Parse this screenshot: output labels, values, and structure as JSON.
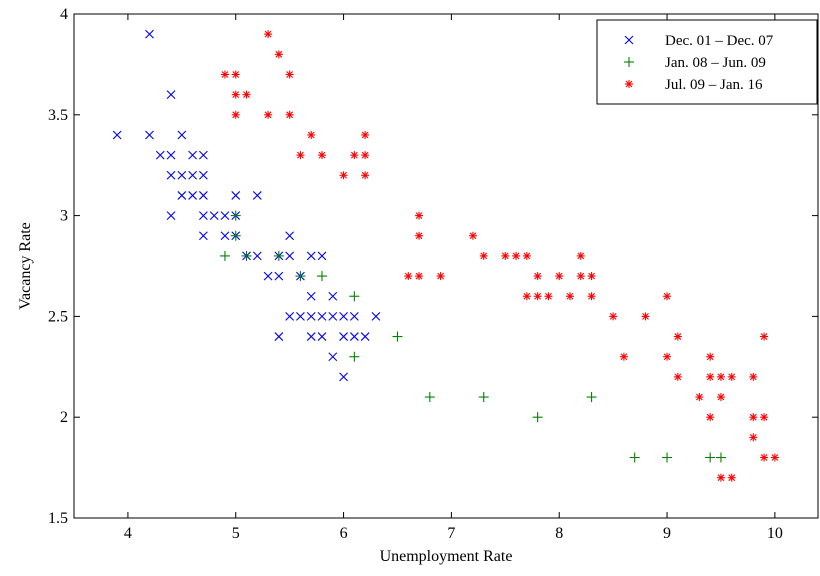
{
  "chart_data": {
    "type": "scatter",
    "title": "",
    "xlabel": "Unemployment Rate",
    "ylabel": "Vacancy Rate",
    "xlim": [
      3.5,
      10.4
    ],
    "ylim": [
      1.5,
      4.0
    ],
    "xticks": [
      4,
      5,
      6,
      7,
      8,
      9,
      10
    ],
    "yticks": [
      1.5,
      2,
      2.5,
      3,
      3.5,
      4
    ],
    "grid": false,
    "legend_position": "top-right",
    "series": [
      {
        "name": "Dec. 01 – Dec. 07",
        "marker": "x",
        "color": "#0000ff",
        "points": [
          [
            3.9,
            3.4
          ],
          [
            4.2,
            3.9
          ],
          [
            4.2,
            3.4
          ],
          [
            4.3,
            3.3
          ],
          [
            4.4,
            3.6
          ],
          [
            4.4,
            3.3
          ],
          [
            4.4,
            3.2
          ],
          [
            4.4,
            3.0
          ],
          [
            4.5,
            3.4
          ],
          [
            4.5,
            3.2
          ],
          [
            4.5,
            3.1
          ],
          [
            4.6,
            3.3
          ],
          [
            4.6,
            3.2
          ],
          [
            4.6,
            3.1
          ],
          [
            4.7,
            3.3
          ],
          [
            4.7,
            3.2
          ],
          [
            4.7,
            3.1
          ],
          [
            4.7,
            3.0
          ],
          [
            4.7,
            2.9
          ],
          [
            4.8,
            3.0
          ],
          [
            4.9,
            3.0
          ],
          [
            4.9,
            2.9
          ],
          [
            5.0,
            3.1
          ],
          [
            5.0,
            3.0
          ],
          [
            5.0,
            2.9
          ],
          [
            5.1,
            2.8
          ],
          [
            5.2,
            3.1
          ],
          [
            5.2,
            2.8
          ],
          [
            5.3,
            2.7
          ],
          [
            5.4,
            2.8
          ],
          [
            5.4,
            2.7
          ],
          [
            5.4,
            2.4
          ],
          [
            5.5,
            2.9
          ],
          [
            5.5,
            2.8
          ],
          [
            5.5,
            2.5
          ],
          [
            5.6,
            2.7
          ],
          [
            5.6,
            2.5
          ],
          [
            5.7,
            2.8
          ],
          [
            5.7,
            2.6
          ],
          [
            5.7,
            2.5
          ],
          [
            5.7,
            2.4
          ],
          [
            5.8,
            2.8
          ],
          [
            5.8,
            2.5
          ],
          [
            5.8,
            2.4
          ],
          [
            5.9,
            2.6
          ],
          [
            5.9,
            2.5
          ],
          [
            5.9,
            2.3
          ],
          [
            6.0,
            2.5
          ],
          [
            6.0,
            2.4
          ],
          [
            6.0,
            2.2
          ],
          [
            6.1,
            2.5
          ],
          [
            6.1,
            2.4
          ],
          [
            6.2,
            2.4
          ],
          [
            6.3,
            2.5
          ]
        ]
      },
      {
        "name": "Jan. 08 – Jun. 09",
        "marker": "+",
        "color": "#008000",
        "points": [
          [
            4.9,
            2.8
          ],
          [
            5.0,
            3.0
          ],
          [
            5.0,
            2.9
          ],
          [
            5.1,
            2.8
          ],
          [
            5.4,
            2.8
          ],
          [
            5.6,
            2.7
          ],
          [
            5.8,
            2.7
          ],
          [
            6.1,
            2.6
          ],
          [
            6.1,
            2.3
          ],
          [
            6.5,
            2.4
          ],
          [
            6.8,
            2.1
          ],
          [
            7.3,
            2.1
          ],
          [
            7.8,
            2.0
          ],
          [
            8.3,
            2.1
          ],
          [
            8.7,
            1.8
          ],
          [
            9.0,
            1.8
          ],
          [
            9.4,
            1.8
          ],
          [
            9.5,
            1.8
          ]
        ]
      },
      {
        "name": "Jul. 09 – Jan. 16",
        "marker": "*",
        "color": "#ff0000",
        "points": [
          [
            4.9,
            3.7
          ],
          [
            5.0,
            3.7
          ],
          [
            5.0,
            3.6
          ],
          [
            5.0,
            3.5
          ],
          [
            5.1,
            3.6
          ],
          [
            5.3,
            3.9
          ],
          [
            5.3,
            3.5
          ],
          [
            5.4,
            3.8
          ],
          [
            5.5,
            3.7
          ],
          [
            5.5,
            3.5
          ],
          [
            5.6,
            3.3
          ],
          [
            5.7,
            3.4
          ],
          [
            5.8,
            3.3
          ],
          [
            6.0,
            3.2
          ],
          [
            6.1,
            3.3
          ],
          [
            6.2,
            3.4
          ],
          [
            6.2,
            3.3
          ],
          [
            6.2,
            3.2
          ],
          [
            6.6,
            2.7
          ],
          [
            6.7,
            3.0
          ],
          [
            6.7,
            2.9
          ],
          [
            6.7,
            2.7
          ],
          [
            6.9,
            2.7
          ],
          [
            7.2,
            2.9
          ],
          [
            7.3,
            2.8
          ],
          [
            7.5,
            2.8
          ],
          [
            7.6,
            2.8
          ],
          [
            7.7,
            2.8
          ],
          [
            7.7,
            2.6
          ],
          [
            7.8,
            2.7
          ],
          [
            7.8,
            2.6
          ],
          [
            7.9,
            2.6
          ],
          [
            8.0,
            2.7
          ],
          [
            8.1,
            2.6
          ],
          [
            8.2,
            2.8
          ],
          [
            8.2,
            2.7
          ],
          [
            8.3,
            2.7
          ],
          [
            8.3,
            2.6
          ],
          [
            8.5,
            2.5
          ],
          [
            8.6,
            2.3
          ],
          [
            8.8,
            2.5
          ],
          [
            9.0,
            2.6
          ],
          [
            9.0,
            2.3
          ],
          [
            9.1,
            2.4
          ],
          [
            9.1,
            2.2
          ],
          [
            9.3,
            2.1
          ],
          [
            9.4,
            2.3
          ],
          [
            9.4,
            2.2
          ],
          [
            9.4,
            2.0
          ],
          [
            9.5,
            2.2
          ],
          [
            9.5,
            2.1
          ],
          [
            9.5,
            1.7
          ],
          [
            9.6,
            2.2
          ],
          [
            9.6,
            1.7
          ],
          [
            9.8,
            2.2
          ],
          [
            9.8,
            2.0
          ],
          [
            9.8,
            1.9
          ],
          [
            9.9,
            2.4
          ],
          [
            9.9,
            2.0
          ],
          [
            9.9,
            1.8
          ],
          [
            10.0,
            1.8
          ]
        ]
      }
    ]
  }
}
